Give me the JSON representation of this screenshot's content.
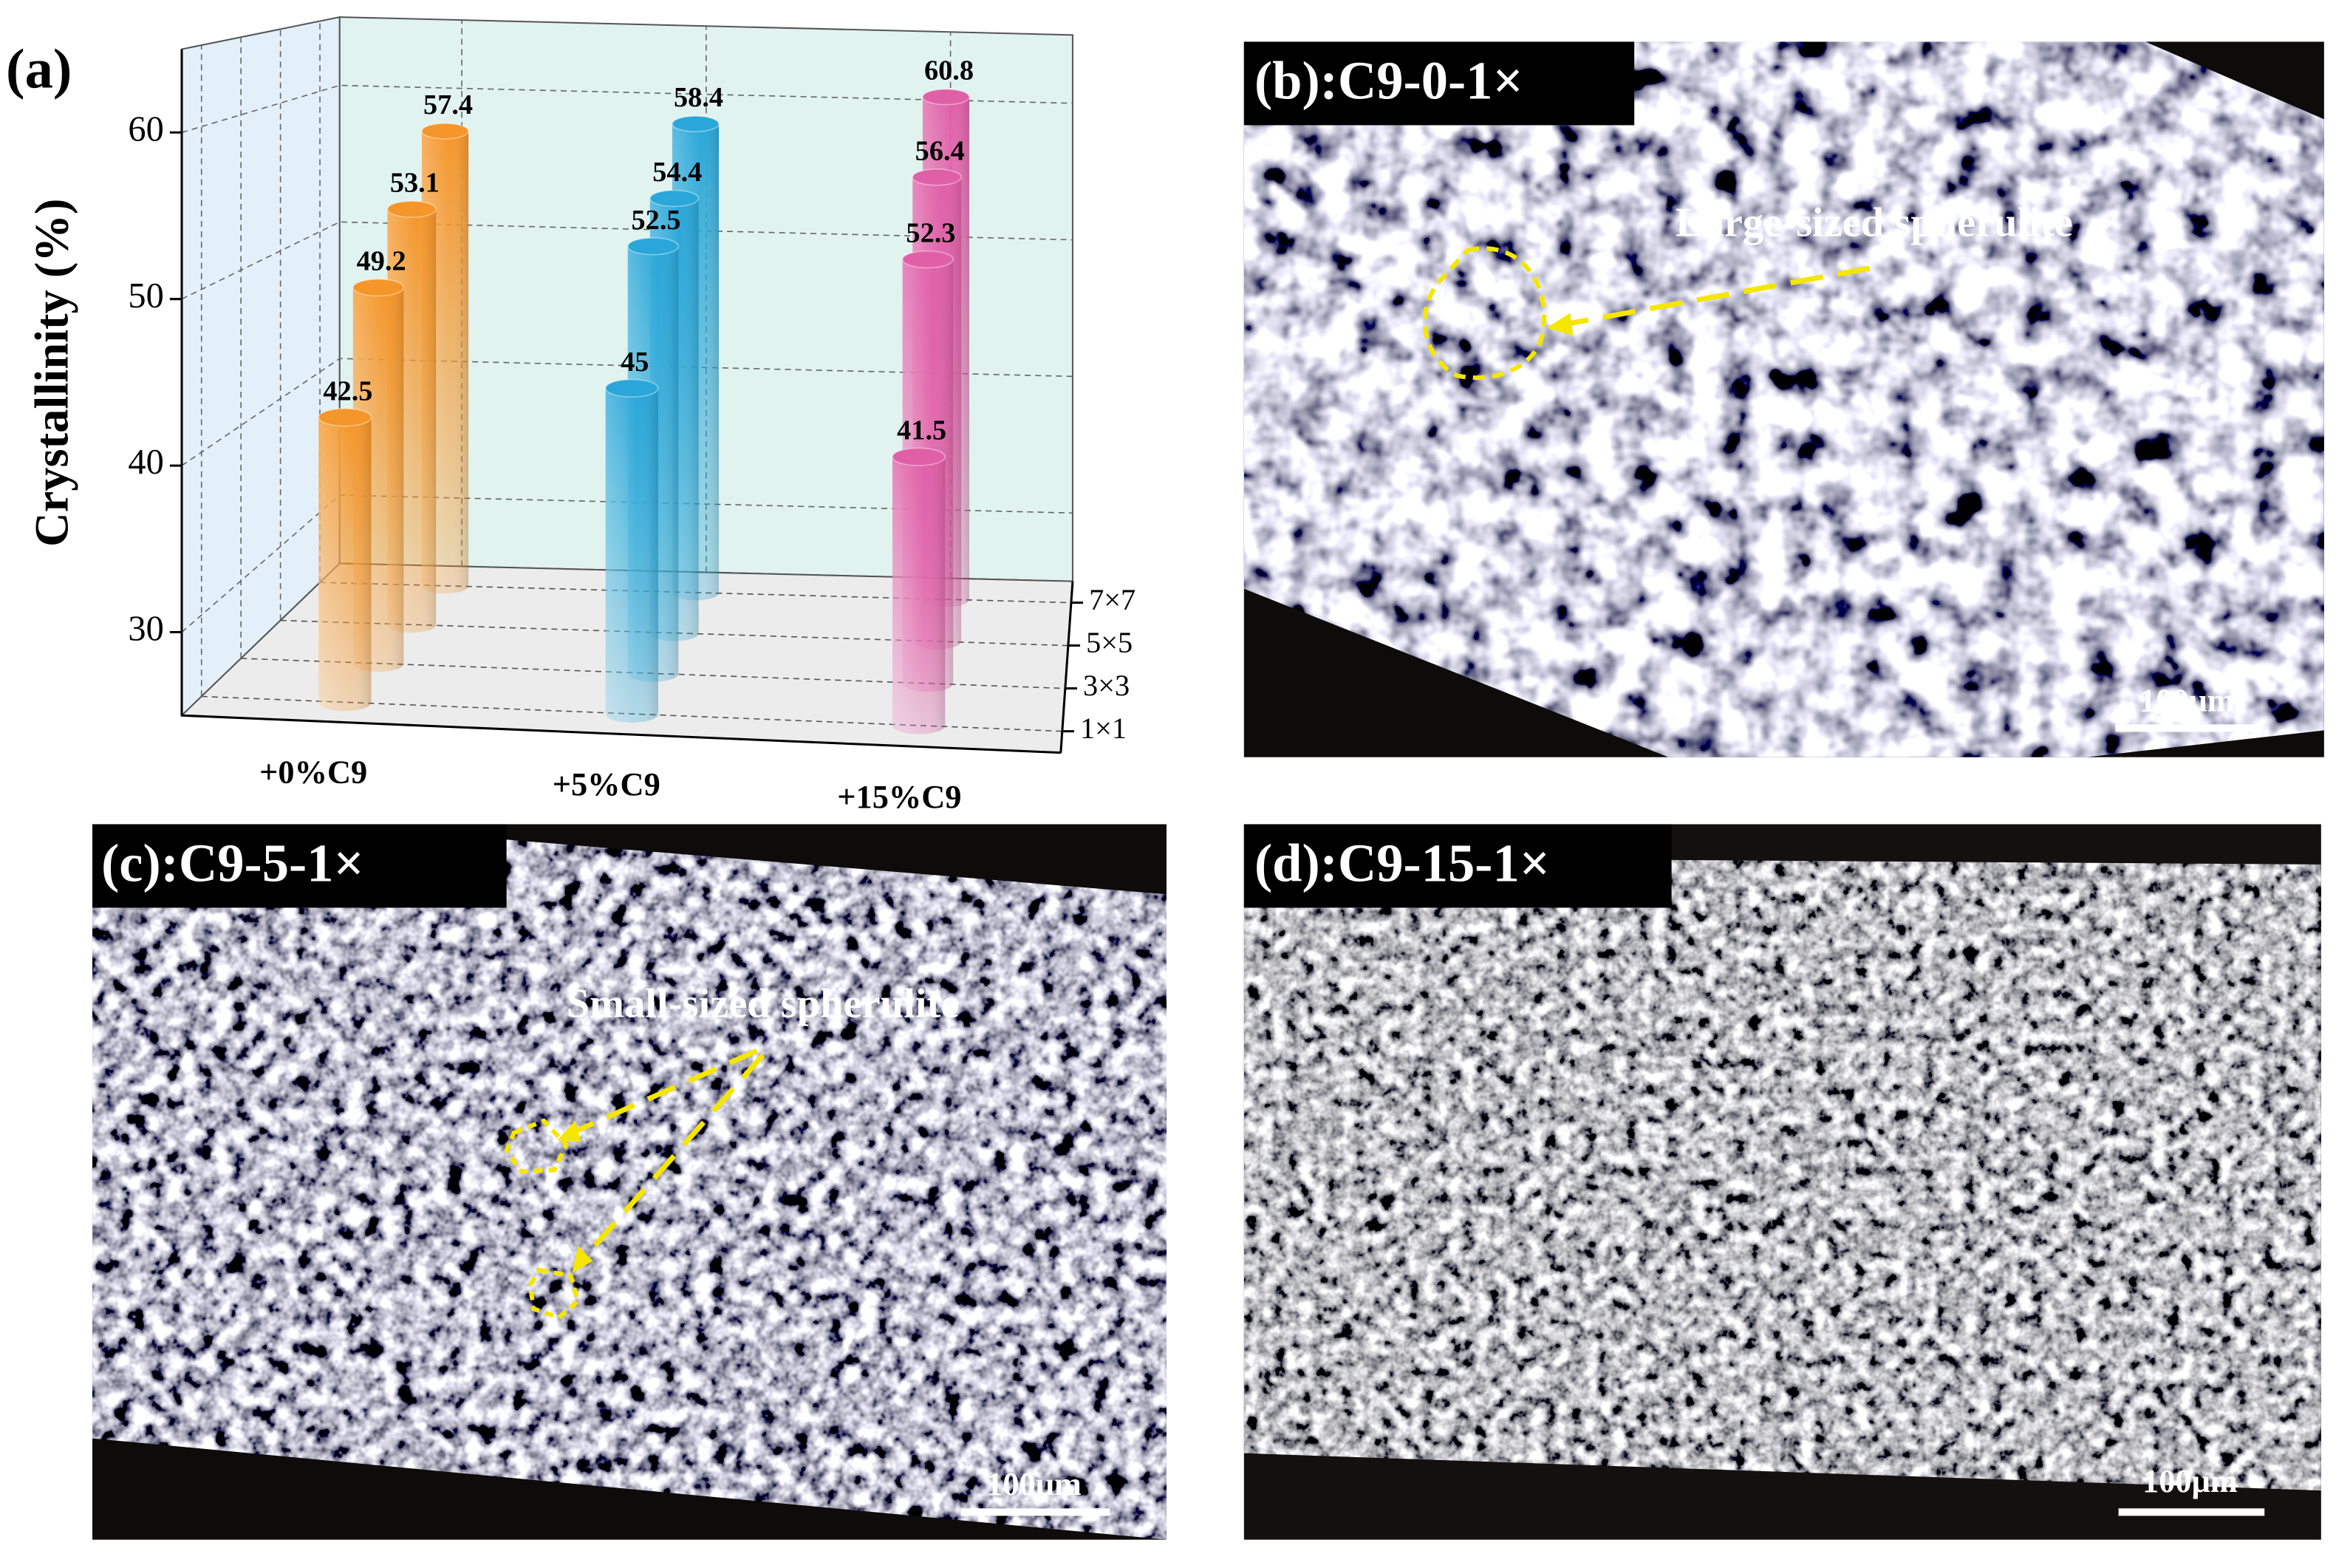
{
  "chart_data": {
    "type": "bar3d",
    "panel_label": "(a)",
    "ylabel": "Crystallinity (%)",
    "categories": [
      "+0%C9",
      "+5%C9",
      "+15%C9"
    ],
    "colors": [
      "#f5962a",
      "#2aa7d8",
      "#e060a8"
    ],
    "series": [
      {
        "name": "1×1",
        "values": [
          42.5,
          45,
          41.5
        ]
      },
      {
        "name": "3×3",
        "values": [
          49.2,
          52.5,
          52.3
        ]
      },
      {
        "name": "5×5",
        "values": [
          53.1,
          54.4,
          56.4
        ]
      },
      {
        "name": "7×7",
        "values": [
          57.4,
          58.4,
          60.8
        ]
      }
    ],
    "ylim": [
      25,
      65
    ],
    "yticks": [
      30,
      40,
      50,
      60
    ],
    "grid": true
  },
  "panels": [
    {
      "label": "(b):C9-0-1×",
      "annotation": "Large-sized spherulite",
      "scale_bar": "100μm"
    },
    {
      "label": "(c):C9-5-1×",
      "annotation": "Small-sized spherulite",
      "scale_bar": "100μm"
    },
    {
      "label": "(d):C9-15-1×",
      "scale_bar": "100μm"
    }
  ]
}
